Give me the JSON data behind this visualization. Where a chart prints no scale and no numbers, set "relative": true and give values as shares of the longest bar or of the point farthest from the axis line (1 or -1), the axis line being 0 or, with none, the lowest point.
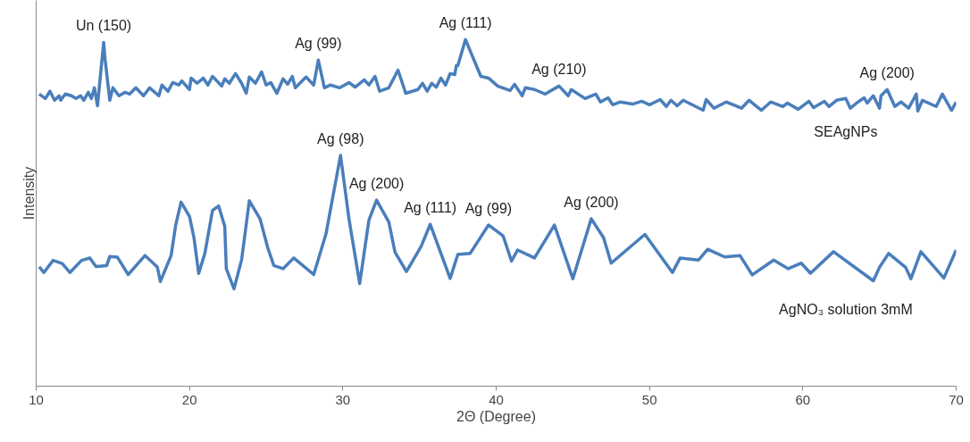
{
  "chart_data": {
    "type": "line",
    "xlabel": "2Θ (Degree)",
    "ylabel": "Intensity",
    "relative": true,
    "xlim": [
      10,
      70
    ],
    "xticks": [
      10,
      20,
      30,
      40,
      50,
      60,
      70
    ],
    "grid": false,
    "legend": false,
    "marker": "none",
    "line_style": "solid",
    "series": [
      {
        "name": "SEAgNPs",
        "color": "#4a7ebb",
        "x": [
          10.2,
          10.6,
          10.9,
          11.2,
          11.5,
          11.6,
          11.9,
          12.3,
          12.6,
          12.9,
          13.1,
          13.4,
          13.6,
          13.8,
          14.0,
          14.4,
          14.5,
          14.8,
          15.0,
          15.4,
          15.8,
          16.1,
          16.5,
          17.0,
          17.4,
          18.0,
          18.2,
          18.6,
          18.9,
          19.3,
          19.5,
          20.0,
          20.1,
          20.5,
          20.9,
          21.2,
          21.5,
          22.1,
          22.3,
          22.6,
          23.0,
          23.4,
          23.7,
          23.9,
          24.3,
          24.7,
          25.0,
          25.3,
          25.7,
          26.1,
          26.4,
          26.7,
          26.9,
          27.6,
          28.1,
          28.4,
          28.8,
          29.2,
          29.8,
          30.4,
          30.8,
          31.4,
          31.7,
          32.1,
          32.4,
          33.0,
          33.6,
          34.1,
          34.9,
          35.2,
          35.5,
          35.8,
          36.1,
          36.4,
          36.7,
          37.0,
          37.3,
          37.4,
          37.5,
          38.0,
          39.0,
          39.5,
          40.1,
          40.9,
          41.2,
          41.7,
          41.9,
          42.5,
          43.2,
          44.1,
          44.7,
          44.9,
          45.8,
          46.5,
          46.8,
          47.3,
          47.6,
          48.1,
          48.9,
          49.5,
          50.0,
          50.7,
          51.1,
          51.4,
          51.8,
          52.2,
          53.5,
          53.7,
          54.2,
          55.0,
          56.0,
          56.5,
          57.3,
          57.9,
          58.7,
          59.0,
          59.7,
          60.4,
          60.7,
          61.4,
          61.7,
          62.2,
          62.8,
          63.1,
          63.6,
          64.0,
          64.2,
          64.6,
          65.0,
          65.1,
          65.5,
          66.0,
          66.4,
          66.9,
          67.4,
          67.5,
          67.8,
          68.7,
          69.1,
          69.7,
          70.0
        ],
        "values": [
          0.843,
          0.83,
          0.851,
          0.825,
          0.838,
          0.825,
          0.843,
          0.838,
          0.83,
          0.838,
          0.825,
          0.848,
          0.83,
          0.861,
          0.809,
          0.992,
          0.941,
          0.825,
          0.861,
          0.838,
          0.848,
          0.843,
          0.861,
          0.838,
          0.861,
          0.838,
          0.869,
          0.851,
          0.876,
          0.869,
          0.881,
          0.856,
          0.889,
          0.874,
          0.889,
          0.869,
          0.894,
          0.866,
          0.887,
          0.874,
          0.902,
          0.874,
          0.845,
          0.892,
          0.874,
          0.907,
          0.869,
          0.876,
          0.845,
          0.887,
          0.871,
          0.894,
          0.861,
          0.892,
          0.869,
          0.941,
          0.861,
          0.869,
          0.861,
          0.876,
          0.863,
          0.884,
          0.869,
          0.894,
          0.851,
          0.861,
          0.912,
          0.845,
          0.856,
          0.874,
          0.851,
          0.874,
          0.863,
          0.889,
          0.869,
          0.902,
          0.899,
          0.925,
          0.925,
          1.0,
          0.894,
          0.889,
          0.866,
          0.853,
          0.871,
          0.838,
          0.861,
          0.856,
          0.843,
          0.866,
          0.838,
          0.856,
          0.83,
          0.843,
          0.82,
          0.832,
          0.812,
          0.82,
          0.814,
          0.822,
          0.812,
          0.827,
          0.807,
          0.825,
          0.809,
          0.825,
          0.796,
          0.827,
          0.802,
          0.82,
          0.802,
          0.825,
          0.796,
          0.82,
          0.807,
          0.817,
          0.799,
          0.822,
          0.804,
          0.822,
          0.807,
          0.825,
          0.83,
          0.802,
          0.82,
          0.832,
          0.817,
          0.838,
          0.802,
          0.838,
          0.856,
          0.807,
          0.82,
          0.802,
          0.843,
          0.794,
          0.825,
          0.807,
          0.843,
          0.796,
          0.82
        ]
      },
      {
        "name": "AgNO₃ solution 3mM",
        "color": "#4a7ebb",
        "x": [
          10.2,
          10.5,
          11.1,
          11.7,
          12.2,
          12.96,
          13.5,
          13.9,
          14.6,
          14.8,
          15.3,
          16.0,
          17.1,
          17.9,
          18.1,
          18.8,
          19.1,
          19.45,
          20.0,
          20.3,
          20.6,
          21.0,
          21.5,
          21.9,
          22.3,
          22.4,
          22.9,
          23.4,
          23.9,
          24.6,
          25.1,
          25.5,
          26.1,
          26.8,
          28.1,
          28.9,
          29.85,
          30.4,
          31.1,
          31.7,
          32.2,
          33.0,
          33.4,
          34.15,
          35.1,
          35.7,
          37.0,
          37.5,
          38.3,
          39.5,
          40.45,
          41.0,
          41.4,
          42.5,
          43.8,
          45.0,
          46.2,
          47.0,
          47.5,
          49.7,
          51.5,
          52.0,
          53.2,
          53.8,
          54.9,
          55.9,
          56.7,
          58.1,
          59.05,
          59.9,
          60.5,
          62.0,
          64.6,
          65.0,
          65.6,
          66.7,
          67.05,
          67.7,
          69.2,
          70.0
        ],
        "values": [
          0.344,
          0.328,
          0.363,
          0.354,
          0.328,
          0.363,
          0.37,
          0.345,
          0.348,
          0.374,
          0.372,
          0.322,
          0.377,
          0.344,
          0.302,
          0.377,
          0.465,
          0.531,
          0.49,
          0.426,
          0.325,
          0.383,
          0.507,
          0.52,
          0.461,
          0.339,
          0.281,
          0.365,
          0.535,
          0.483,
          0.4,
          0.348,
          0.339,
          0.37,
          0.322,
          0.439,
          0.666,
          0.483,
          0.296,
          0.479,
          0.537,
          0.474,
          0.387,
          0.331,
          0.403,
          0.467,
          0.311,
          0.38,
          0.383,
          0.465,
          0.434,
          0.361,
          0.393,
          0.37,
          0.465,
          0.31,
          0.483,
          0.429,
          0.355,
          0.438,
          0.328,
          0.37,
          0.364,
          0.395,
          0.373,
          0.377,
          0.321,
          0.364,
          0.339,
          0.355,
          0.326,
          0.388,
          0.304,
          0.343,
          0.383,
          0.343,
          0.31,
          0.388,
          0.312,
          0.393
        ]
      }
    ],
    "annotations": [
      {
        "text": "Un (150)",
        "x": 14.4,
        "y": 0.992
      },
      {
        "text": "Ag (99)",
        "x": 28.4,
        "y": 0.941
      },
      {
        "text": "Ag (111)",
        "x": 38.0,
        "y": 1.0
      },
      {
        "text": "Ag (210)",
        "x": 44.1,
        "y": 0.866
      },
      {
        "text": "Ag (200)",
        "x": 65.5,
        "y": 0.856
      },
      {
        "text": "Ag (98)",
        "x": 29.85,
        "y": 0.666
      },
      {
        "text": "Ag (200)",
        "x": 32.2,
        "y": 0.537
      },
      {
        "text": "Ag (111)",
        "x": 35.7,
        "y": 0.467
      },
      {
        "text": "Ag (99)",
        "x": 39.5,
        "y": 0.465
      },
      {
        "text": "Ag (200)",
        "x": 46.2,
        "y": 0.483
      }
    ]
  }
}
